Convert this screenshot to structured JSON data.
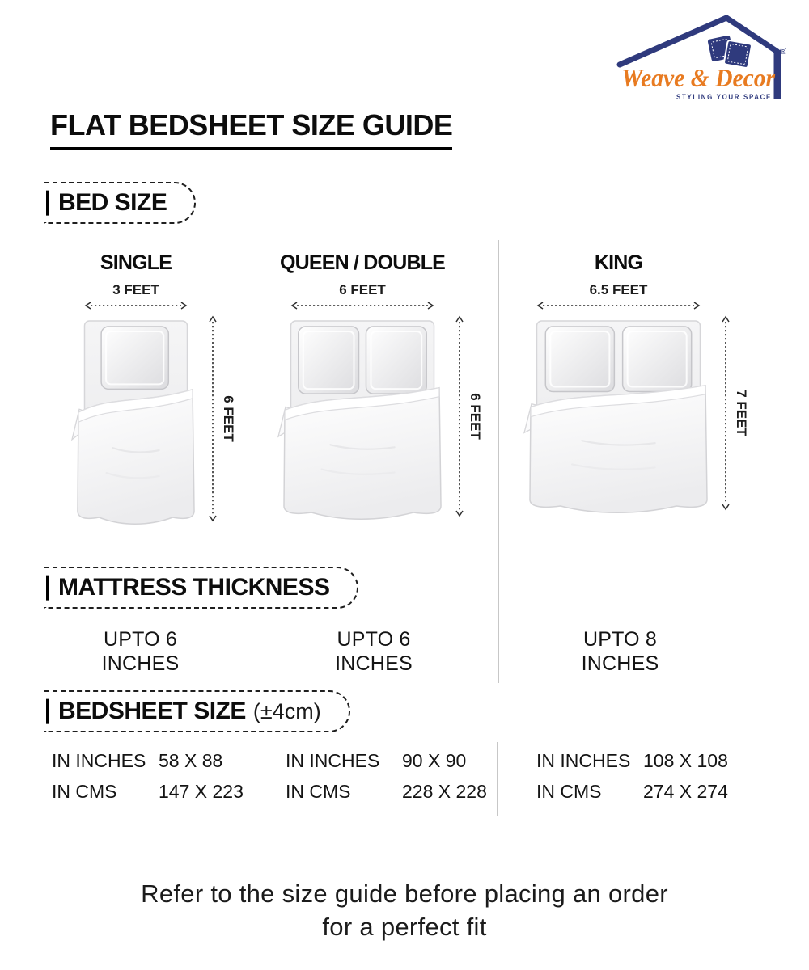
{
  "brand": {
    "name": "Weave & Decor",
    "tagline": "STYLING YOUR SPACE",
    "registered": "®",
    "navy": "#2f3a7d",
    "orange": "#e87b21"
  },
  "page": {
    "title": "FLAT BEDSHEET SIZE GUIDE",
    "footer_line1": "Refer to the size guide before placing an order",
    "footer_line2": "for a perfect fit"
  },
  "bed_size": {
    "heading": "BED SIZE",
    "columns": [
      {
        "name": "SINGLE",
        "width": "3 FEET",
        "height": "6 FEET",
        "pillows": 1
      },
      {
        "name": "QUEEN / DOUBLE",
        "width": "6 FEET",
        "height": "6 FEET",
        "pillows": 2
      },
      {
        "name": "KING",
        "width": "6.5 FEET",
        "height": "7 FEET",
        "pillows": 2
      }
    ]
  },
  "mattress_thickness": {
    "heading": "MATTRESS THICKNESS",
    "values": [
      {
        "line1": "UPTO 6",
        "line2": "INCHES"
      },
      {
        "line1": "UPTO 6",
        "line2": "INCHES"
      },
      {
        "line1": "UPTO 8",
        "line2": "INCHES"
      }
    ]
  },
  "bedsheet_size": {
    "heading": "BEDSHEET SIZE",
    "tolerance": "(±4cm)",
    "inches_label": "IN INCHES",
    "cms_label": "IN CMS",
    "columns": [
      {
        "inches": "58 X 88",
        "cms": "147 X 223"
      },
      {
        "inches": "90 X 90",
        "cms": "228 X 228"
      },
      {
        "inches": "108 X 108",
        "cms": "274 X 274"
      }
    ]
  }
}
